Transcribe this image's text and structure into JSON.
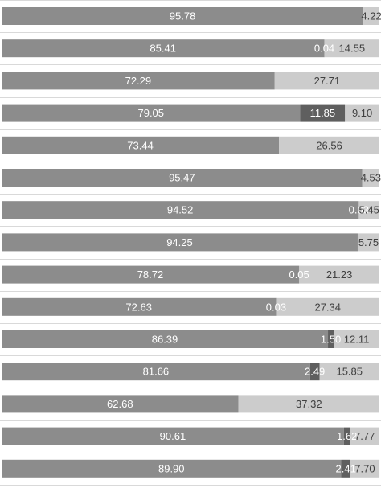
{
  "chart_data": {
    "type": "bar",
    "orientation": "horizontal",
    "stacked": true,
    "xlim": [
      0,
      100
    ],
    "grid": true,
    "legend": "none",
    "series_colors": [
      "#8c8c8c",
      "#5f5f5f",
      "#cccccc"
    ],
    "series": [
      {
        "values": [
          95.78,
          85.41,
          72.29,
          79.05,
          73.44,
          95.47,
          94.52,
          94.25,
          78.72,
          72.63,
          86.39,
          81.66,
          62.68,
          90.61,
          89.9
        ]
      },
      {
        "values": [
          null,
          0.04,
          null,
          11.85,
          null,
          null,
          0.03,
          null,
          0.05,
          0.03,
          1.5,
          2.49,
          null,
          1.62,
          2.41
        ]
      },
      {
        "values": [
          4.22,
          14.55,
          27.71,
          9.1,
          26.56,
          4.53,
          5.45,
          5.75,
          21.23,
          27.34,
          12.11,
          15.85,
          37.32,
          7.77,
          7.7
        ]
      }
    ]
  }
}
